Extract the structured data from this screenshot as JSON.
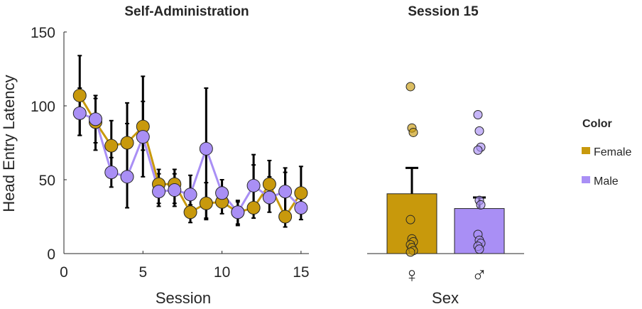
{
  "colors": {
    "female": "#c8990c",
    "male": "#a98ff5",
    "error": "#000000",
    "axis": "#262626"
  },
  "chart_data": [
    {
      "type": "line",
      "title": "Self-Administration",
      "xlabel": "Session",
      "ylabel": "Head Entry Latency",
      "xlim": [
        0,
        15.5
      ],
      "ylim": [
        0,
        150
      ],
      "xticks": [
        0,
        5,
        10,
        15
      ],
      "yticks": [
        0,
        50,
        100,
        150
      ],
      "x": [
        1,
        2,
        3,
        4,
        5,
        6,
        7,
        8,
        9,
        10,
        11,
        12,
        13,
        14,
        15
      ],
      "series": [
        {
          "name": "Female",
          "color": "#c8990c",
          "values": [
            107,
            89,
            73,
            75,
            86,
            47,
            47,
            28,
            34,
            35,
            28,
            31,
            47,
            25,
            41
          ],
          "err_low": [
            80,
            75,
            58,
            50,
            70,
            34,
            34,
            21,
            24,
            27,
            20,
            24,
            34,
            18,
            29
          ],
          "err_high": [
            134,
            107,
            90,
            102,
            120,
            57,
            57,
            33,
            48,
            45,
            36,
            67,
            63,
            58,
            59
          ]
        },
        {
          "name": "Male",
          "color": "#a98ff5",
          "values": [
            95,
            91,
            55,
            52,
            79,
            42,
            43,
            40,
            71,
            41,
            28,
            46,
            38,
            42,
            31
          ],
          "err_low": [
            80,
            70,
            45,
            31,
            52,
            32,
            32,
            30,
            23,
            31,
            19,
            29,
            28,
            28,
            23
          ],
          "err_high": [
            112,
            105,
            65,
            88,
            103,
            54,
            54,
            53,
            112,
            50,
            35,
            60,
            52,
            55,
            40
          ]
        }
      ]
    },
    {
      "type": "bar",
      "title": "Session 15",
      "xlabel": "Sex",
      "ylabel": "",
      "ylim": [
        0,
        150
      ],
      "categories": [
        "♀",
        "♂"
      ],
      "category_names": [
        "Female",
        "Male"
      ],
      "values": [
        40.5,
        30.5
      ],
      "err_high": [
        58,
        38
      ],
      "colors": [
        "#c8990c",
        "#a98ff5"
      ],
      "points": [
        [
          113,
          85,
          82,
          23,
          10,
          8,
          6,
          4,
          2,
          1
        ],
        [
          94,
          83,
          72,
          70,
          36,
          33,
          13,
          9,
          7,
          5,
          3
        ]
      ]
    }
  ],
  "legend": {
    "title": "Color",
    "items": [
      {
        "label": "Female",
        "color": "#c8990c"
      },
      {
        "label": "Male",
        "color": "#a98ff5"
      }
    ]
  }
}
